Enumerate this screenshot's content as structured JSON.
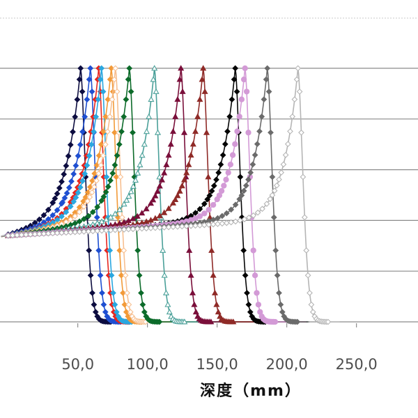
{
  "chart_data": {
    "type": "line",
    "title": "",
    "xlabel": "深度（mm）",
    "ylabel": "",
    "x_visible_range": [
      -5,
      215
    ],
    "y_range": [
      0,
      1
    ],
    "x_ticks": [
      {
        "value": 50,
        "label": "50,0"
      },
      {
        "value": 100,
        "label": "100,0"
      },
      {
        "value": 150,
        "label": "150,0"
      },
      {
        "value": 200,
        "label": "200,0"
      },
      {
        "value": 250,
        "label": "250,0"
      }
    ],
    "y_gridlines": [
      1.0,
      0.8,
      0.6,
      0.4,
      0.2,
      0.0
    ],
    "grid": true,
    "legend": "none",
    "curve_shape": {
      "entrance": 0.34,
      "fall_width": 4.5
    },
    "series": [
      {
        "peak_x": 52,
        "color": "#0d0d40",
        "marker": "diamond",
        "fill": true
      },
      {
        "peak_x": 59,
        "color": "#1f4fd1",
        "marker": "diamond",
        "fill": true
      },
      {
        "peak_x": 65,
        "color": "#e6261f",
        "marker": "diamond",
        "fill": true
      },
      {
        "peak_x": 67,
        "color": "#2aa7e0",
        "marker": "diamond",
        "fill": true
      },
      {
        "peak_x": 74,
        "color": "#f29a38",
        "marker": "diamond",
        "fill": true
      },
      {
        "peak_x": 77,
        "color": "#f7bf90",
        "marker": "diamond",
        "fill": false
      },
      {
        "peak_x": 87,
        "color": "#0c6b2a",
        "marker": "diamond",
        "fill": true
      },
      {
        "peak_x": 105,
        "color": "#4aa099",
        "marker": "triangle",
        "fill": false
      },
      {
        "peak_x": 124,
        "color": "#7a0f3a",
        "marker": "triangle",
        "fill": true
      },
      {
        "peak_x": 140,
        "color": "#8f2a27",
        "marker": "triangle",
        "fill": true
      },
      {
        "peak_x": 163,
        "color": "#050505",
        "marker": "diamond",
        "fill": true
      },
      {
        "peak_x": 170,
        "color": "#d39ad6",
        "marker": "circle",
        "fill": true
      },
      {
        "peak_x": 186,
        "color": "#6b6b6b",
        "marker": "diamond",
        "fill": true
      },
      {
        "peak_x": 208,
        "color": "#b5b5b5",
        "marker": "diamond",
        "fill": false
      }
    ]
  }
}
